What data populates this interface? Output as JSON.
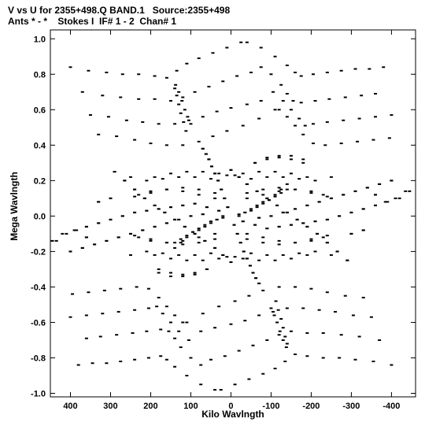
{
  "header": {
    "line1": "V vs U for 2355+498.Q BAND.1   Source:2355+498",
    "line2": "Ants * - *    Stokes I  IF# 1 - 2  Chan# 1"
  },
  "chart_data": {
    "type": "scatter",
    "title": "V vs U for 2355+498.Q BAND.1   Source:2355+498",
    "subtitle": "Ants * - *    Stokes I  IF# 1 - 2  Chan# 1",
    "xlabel": "Kilo Wavlngth",
    "ylabel": "Mega Wavlngth",
    "xlim": [
      450,
      -460
    ],
    "ylim": [
      -1.02,
      1.05
    ],
    "x_ticks": [
      400,
      300,
      200,
      100,
      0,
      -100,
      -200,
      -300,
      -400
    ],
    "x_tick_labels": [
      "400",
      "300",
      "200",
      "100",
      "0",
      "-100",
      "-200",
      "-300",
      "-400"
    ],
    "y_ticks": [
      1.0,
      0.8,
      0.6,
      0.4,
      0.2,
      0.0,
      -0.2,
      -0.4,
      -0.6,
      -0.8,
      -1.0
    ],
    "y_tick_labels": [
      "1.0",
      "0.8",
      "0.6",
      "0.4",
      "0.2",
      "0.0",
      "-0.2",
      "-0.4",
      "-0.6",
      "-0.8",
      "-1.0"
    ],
    "grid": false,
    "series": [
      {
        "points": [
          [
            400,
            0.84
          ],
          [
            355,
            0.82
          ],
          [
            310,
            0.81
          ],
          [
            270,
            0.8
          ],
          [
            230,
            0.8
          ],
          [
            190,
            0.79
          ],
          [
            160,
            0.78
          ],
          [
            135,
            0.82
          ],
          [
            110,
            0.86
          ],
          [
            80,
            0.89
          ],
          [
            45,
            0.92
          ],
          [
            10,
            0.95
          ],
          [
            -25,
            0.98
          ],
          [
            370,
            0.7
          ],
          [
            320,
            0.68
          ],
          [
            275,
            0.67
          ],
          [
            230,
            0.66
          ],
          [
            190,
            0.66
          ],
          [
            150,
            0.65
          ],
          [
            120,
            0.67
          ],
          [
            90,
            0.7
          ],
          [
            55,
            0.73
          ],
          [
            20,
            0.76
          ],
          [
            -15,
            0.79
          ],
          [
            -50,
            0.81
          ],
          [
            350,
            0.57
          ],
          [
            305,
            0.56
          ],
          [
            260,
            0.54
          ],
          [
            220,
            0.53
          ],
          [
            180,
            0.52
          ],
          [
            140,
            0.52
          ],
          [
            105,
            0.54
          ],
          [
            70,
            0.56
          ],
          [
            35,
            0.59
          ],
          [
            0,
            0.61
          ],
          [
            -40,
            0.63
          ],
          [
            -75,
            0.65
          ],
          [
            330,
            0.46
          ],
          [
            285,
            0.45
          ],
          [
            240,
            0.43
          ],
          [
            200,
            0.41
          ],
          [
            160,
            0.4
          ],
          [
            120,
            0.4
          ],
          [
            80,
            0.42
          ],
          [
            45,
            0.45
          ],
          [
            10,
            0.48
          ],
          [
            -30,
            0.51
          ],
          [
            -70,
            0.55
          ],
          [
            -110,
            0.6
          ]
        ]
      },
      {
        "points": [
          [
            40,
            -0.98
          ],
          [
            75,
            -0.95
          ],
          [
            110,
            -0.9
          ],
          [
            140,
            -0.85
          ],
          [
            160,
            -0.81
          ],
          [
            175,
            -0.79
          ],
          [
            205,
            -0.8
          ],
          [
            240,
            -0.81
          ],
          [
            275,
            -0.82
          ],
          [
            310,
            -0.83
          ],
          [
            345,
            -0.83
          ],
          [
            380,
            -0.84
          ],
          [
            75,
            -0.84
          ],
          [
            100,
            -0.8
          ],
          [
            125,
            -0.74
          ],
          [
            140,
            -0.69
          ],
          [
            155,
            -0.65
          ],
          [
            175,
            -0.64
          ],
          [
            210,
            -0.65
          ],
          [
            245,
            -0.66
          ],
          [
            285,
            -0.67
          ],
          [
            325,
            -0.68
          ],
          [
            360,
            -0.69
          ],
          [
            105,
            -0.7
          ],
          [
            130,
            -0.65
          ],
          [
            150,
            -0.6
          ],
          [
            170,
            -0.55
          ],
          [
            185,
            -0.51
          ],
          [
            205,
            -0.52
          ],
          [
            240,
            -0.53
          ],
          [
            280,
            -0.54
          ],
          [
            320,
            -0.55
          ],
          [
            360,
            -0.56
          ],
          [
            400,
            -0.57
          ],
          [
            120,
            -0.6
          ],
          [
            140,
            -0.56
          ],
          [
            160,
            -0.51
          ],
          [
            180,
            -0.46
          ],
          [
            205,
            -0.41
          ],
          [
            235,
            -0.4
          ],
          [
            275,
            -0.41
          ],
          [
            315,
            -0.42
          ],
          [
            355,
            -0.43
          ],
          [
            395,
            -0.44
          ]
        ]
      },
      {
        "points": [
          [
            435,
            -0.14
          ],
          [
            410,
            -0.1
          ],
          [
            385,
            -0.08
          ],
          [
            360,
            -0.06
          ],
          [
            330,
            -0.04
          ],
          [
            300,
            -0.02
          ],
          [
            270,
            0.0
          ],
          [
            240,
            0.02
          ],
          [
            210,
            0.03
          ],
          [
            180,
            0.04
          ],
          [
            150,
            0.05
          ],
          [
            120,
            0.06
          ],
          [
            90,
            0.07
          ],
          [
            60,
            0.05
          ],
          [
            30,
            0.03
          ],
          [
            -30,
            -0.03
          ],
          [
            -60,
            -0.05
          ],
          [
            -90,
            -0.07
          ],
          [
            -120,
            -0.06
          ],
          [
            -150,
            -0.05
          ],
          [
            -180,
            -0.04
          ],
          [
            -210,
            -0.03
          ],
          [
            -240,
            -0.02
          ],
          [
            -270,
            0.0
          ],
          [
            -300,
            0.02
          ],
          [
            -330,
            0.04
          ],
          [
            -360,
            0.06
          ],
          [
            -390,
            0.08
          ],
          [
            -420,
            0.1
          ],
          [
            -445,
            0.14
          ],
          [
            400,
            -0.2
          ],
          [
            370,
            -0.18
          ],
          [
            340,
            -0.16
          ],
          [
            310,
            -0.14
          ],
          [
            280,
            -0.12
          ],
          [
            250,
            -0.1
          ],
          [
            220,
            -0.08
          ],
          [
            190,
            -0.06
          ],
          [
            160,
            -0.04
          ],
          [
            130,
            -0.02
          ],
          [
            100,
            0.0
          ],
          [
            70,
            0.01
          ],
          [
            -70,
            -0.01
          ],
          [
            -100,
            0.0
          ],
          [
            -130,
            0.02
          ],
          [
            -160,
            0.04
          ],
          [
            -190,
            0.06
          ],
          [
            -220,
            0.08
          ],
          [
            -250,
            0.1
          ],
          [
            -280,
            0.12
          ],
          [
            -310,
            0.14
          ],
          [
            -340,
            0.16
          ],
          [
            -370,
            0.18
          ],
          [
            -400,
            0.2
          ],
          [
            290,
            0.25
          ],
          [
            265,
            0.2
          ],
          [
            240,
            0.15
          ],
          [
            215,
            0.1
          ],
          [
            190,
            0.06
          ],
          [
            165,
            0.02
          ],
          [
            140,
            -0.02
          ],
          [
            115,
            -0.06
          ],
          [
            90,
            -0.1
          ],
          [
            65,
            -0.14
          ],
          [
            40,
            -0.18
          ],
          [
            20,
            -0.22
          ],
          [
            0,
            -0.26
          ],
          [
            -290,
            -0.25
          ],
          [
            -265,
            -0.2
          ],
          [
            -240,
            -0.15
          ],
          [
            -215,
            -0.1
          ],
          [
            -190,
            -0.06
          ],
          [
            -165,
            -0.02
          ],
          [
            -140,
            0.02
          ],
          [
            -115,
            0.06
          ],
          [
            -90,
            0.1
          ],
          [
            -65,
            0.14
          ],
          [
            -40,
            0.18
          ],
          [
            -20,
            0.22
          ],
          [
            0,
            0.26
          ],
          [
            250,
            0.22
          ],
          [
            210,
            0.2
          ],
          [
            170,
            0.21
          ],
          [
            130,
            0.22
          ],
          [
            90,
            0.22
          ],
          [
            50,
            0.21
          ],
          [
            10,
            0.23
          ],
          [
            -30,
            0.24
          ],
          [
            -70,
            0.25
          ],
          [
            -110,
            0.25
          ],
          [
            -150,
            0.24
          ],
          [
            -190,
            0.22
          ],
          [
            250,
            -0.22
          ],
          [
            210,
            -0.2
          ],
          [
            170,
            -0.21
          ],
          [
            130,
            -0.22
          ],
          [
            90,
            -0.22
          ],
          [
            50,
            -0.21
          ],
          [
            10,
            -0.23
          ],
          [
            -30,
            -0.24
          ],
          [
            -70,
            -0.25
          ],
          [
            -110,
            -0.25
          ],
          [
            -150,
            -0.24
          ],
          [
            -190,
            -0.22
          ],
          [
            230,
            0.12
          ],
          [
            200,
            0.14
          ],
          [
            160,
            0.15
          ],
          [
            120,
            0.14
          ],
          [
            80,
            0.12
          ],
          [
            40,
            0.1
          ],
          [
            -40,
            0.13
          ],
          [
            -80,
            0.15
          ],
          [
            -120,
            0.16
          ],
          [
            -160,
            0.15
          ],
          [
            -200,
            0.13
          ],
          [
            -240,
            0.11
          ],
          [
            230,
            -0.12
          ],
          [
            200,
            -0.14
          ],
          [
            160,
            -0.15
          ],
          [
            120,
            -0.14
          ],
          [
            80,
            -0.12
          ],
          [
            40,
            -0.1
          ],
          [
            -40,
            -0.13
          ],
          [
            -80,
            -0.15
          ],
          [
            -120,
            -0.16
          ],
          [
            -160,
            -0.15
          ],
          [
            -200,
            -0.13
          ],
          [
            -240,
            -0.11
          ],
          [
            180,
            -0.3
          ],
          [
            150,
            -0.32
          ],
          [
            120,
            -0.34
          ],
          [
            90,
            -0.33
          ],
          [
            60,
            -0.3
          ],
          [
            -60,
            0.3
          ],
          [
            -90,
            0.32
          ],
          [
            -120,
            0.33
          ],
          [
            -150,
            0.34
          ],
          [
            -180,
            0.32
          ],
          [
            330,
            0.08
          ],
          [
            300,
            0.1
          ],
          [
            -330,
            -0.08
          ],
          [
            -300,
            -0.1
          ],
          [
            360,
            -0.12
          ],
          [
            -360,
            0.12
          ]
        ]
      },
      {
        "points": [
          [
            140,
            -0.18
          ],
          [
            125,
            -0.15
          ],
          [
            110,
            -0.12
          ],
          [
            95,
            -0.09
          ],
          [
            80,
            -0.07
          ],
          [
            65,
            -0.05
          ],
          [
            50,
            -0.03
          ],
          [
            35,
            -0.02
          ],
          [
            20,
            0.0
          ],
          [
            -20,
            0.01
          ],
          [
            -35,
            0.02
          ],
          [
            -50,
            0.04
          ],
          [
            -65,
            0.06
          ],
          [
            -80,
            0.08
          ],
          [
            -95,
            0.09
          ],
          [
            -110,
            0.11
          ],
          [
            -125,
            0.13
          ],
          [
            -140,
            0.15
          ],
          [
            70,
            0.38
          ],
          [
            62,
            0.35
          ],
          [
            55,
            0.32
          ],
          [
            48,
            0.28
          ],
          [
            40,
            0.24
          ],
          [
            32,
            0.2
          ],
          [
            24,
            0.15
          ],
          [
            16,
            0.1
          ],
          [
            8,
            0.05
          ],
          [
            -8,
            -0.05
          ],
          [
            -16,
            -0.1
          ],
          [
            -24,
            -0.15
          ],
          [
            -32,
            -0.2
          ],
          [
            -40,
            -0.24
          ],
          [
            -48,
            -0.28
          ],
          [
            -55,
            -0.32
          ],
          [
            -62,
            -0.35
          ],
          [
            -70,
            -0.38
          ],
          [
            140,
            0.72
          ],
          [
            135,
            0.68
          ],
          [
            130,
            0.63
          ],
          [
            125,
            0.58
          ],
          [
            118,
            0.53
          ],
          [
            112,
            0.48
          ],
          [
            -100,
            -0.52
          ],
          [
            -108,
            -0.56
          ],
          [
            -115,
            -0.6
          ],
          [
            -122,
            -0.65
          ],
          [
            -130,
            -0.7
          ],
          [
            -138,
            -0.74
          ]
        ]
      }
    ]
  }
}
